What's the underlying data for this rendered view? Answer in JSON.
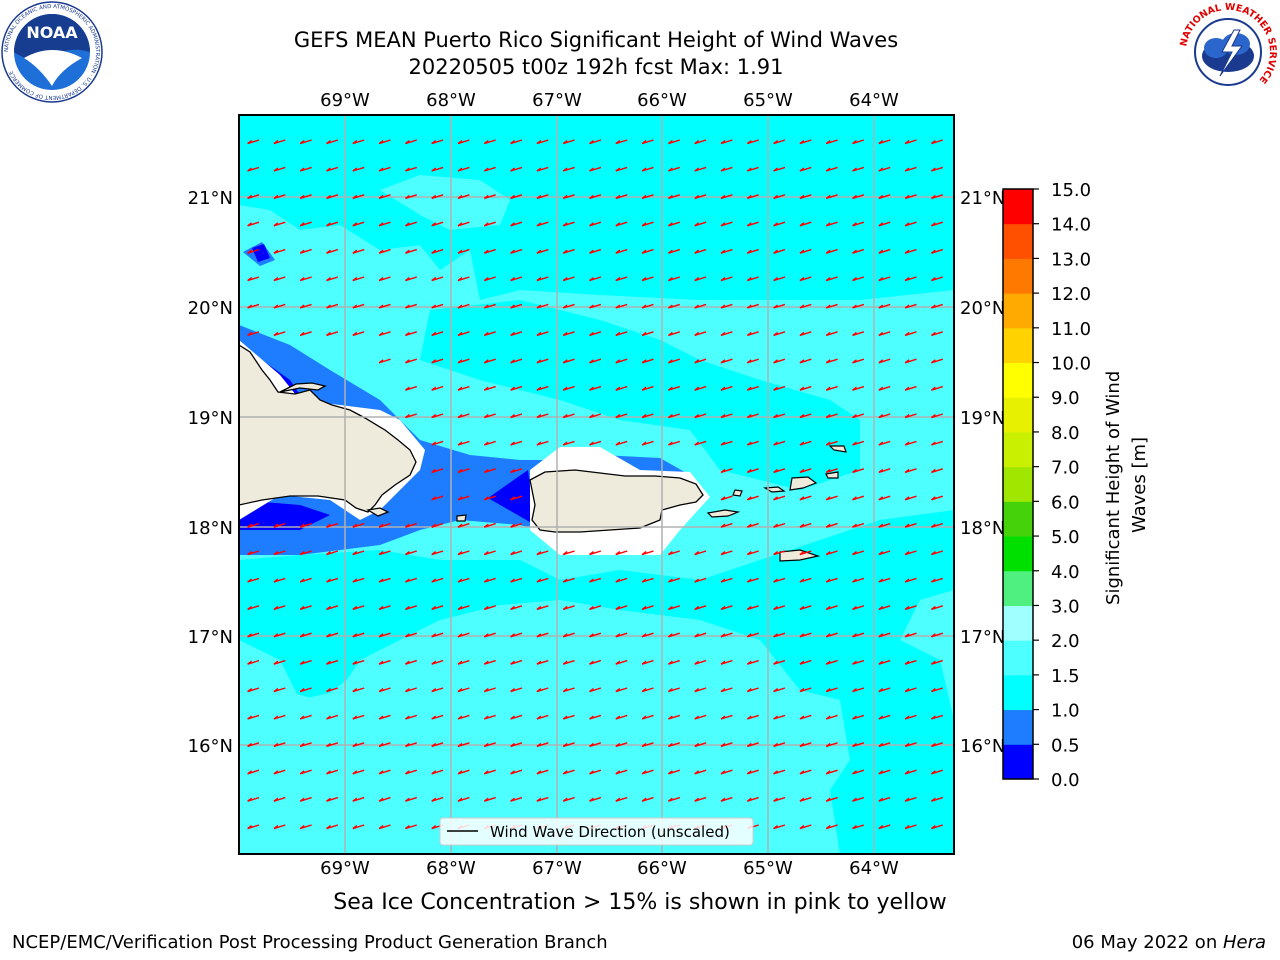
{
  "header": {
    "title_line1": "GEFS MEAN Puerto Rico Significant Height of Wind Waves",
    "title_line2": "20220505 t00z 192h fcst   Max: 1.91"
  },
  "logos": {
    "noaa_text": "NOAA",
    "noaa_ring_text": "NATIONAL OCEANIC AND ATMOSPHERIC ADMINISTRATION · U.S. DEPARTMENT OF COMMERCE",
    "nws_ring_text": "NATIONAL WEATHER SERVICE"
  },
  "map": {
    "lon_labels": [
      "69°W",
      "68°W",
      "67°W",
      "66°W",
      "65°W",
      "64°W"
    ],
    "lat_labels": [
      "21°N",
      "20°N",
      "19°N",
      "18°N",
      "17°N",
      "16°N"
    ],
    "legend_label": "Wind Wave Direction (unscaled)",
    "ocean_color": "#4dffff",
    "arrow_color": "#ff0000",
    "land_color": "#efebdc",
    "arrow_direction": "toward west-southwest"
  },
  "colorbar": {
    "label": "Significant Height of Wind Waves [m]",
    "ticks": [
      "0.0",
      "0.5",
      "1.0",
      "1.5",
      "2.0",
      "3.0",
      "4.0",
      "5.0",
      "6.0",
      "7.0",
      "8.0",
      "9.0",
      "10.0",
      "11.0",
      "12.0",
      "13.0",
      "14.0",
      "15.0"
    ],
    "colors": [
      "#0000ff",
      "#1e7dff",
      "#00ffff",
      "#4dffff",
      "#a0ffff",
      "#50f080",
      "#00e000",
      "#46d20a",
      "#a0e600",
      "#c8f000",
      "#e6f000",
      "#ffff00",
      "#ffd200",
      "#ffaa00",
      "#ff7800",
      "#ff5000",
      "#ff0000"
    ]
  },
  "notes": {
    "sea_ice": "Sea Ice Concentration > 15% is shown in pink to yellow",
    "credit_left": "NCEP/EMC/Verification Post Processing Product Generation Branch",
    "credit_right_prefix": "06 May 2022 on ",
    "credit_right_host": "Hera"
  }
}
